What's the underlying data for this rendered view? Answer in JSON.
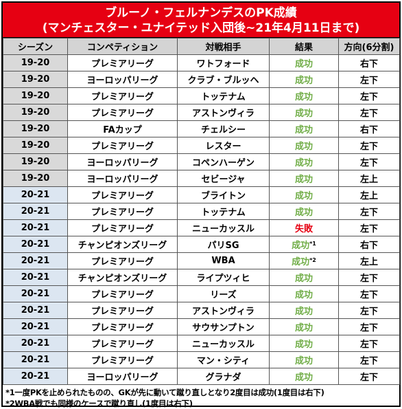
{
  "title": {
    "line1": "ブルーノ・フェルナンデスのPK成績",
    "line2": "(マンチェスター・ユナイテッド入団後~21年4月11日まで)"
  },
  "headers": [
    "シーズン",
    "コンペティション",
    "対戦相手",
    "結果",
    "方向(6分割)"
  ],
  "rows": [
    {
      "season": "19-20",
      "competition": "プレミアリーグ",
      "opponent": "ワトフォード",
      "result": "成功",
      "status": "win",
      "direction": "右下"
    },
    {
      "season": "19-20",
      "competition": "ヨーロッパリーグ",
      "opponent": "クラブ・ブルッヘ",
      "result": "成功",
      "status": "win",
      "direction": "左下"
    },
    {
      "season": "19-20",
      "competition": "プレミアリーグ",
      "opponent": "トッテナム",
      "result": "成功",
      "status": "win",
      "direction": "左下"
    },
    {
      "season": "19-20",
      "competition": "プレミアリーグ",
      "opponent": "アストンヴィラ",
      "result": "成功",
      "status": "win",
      "direction": "左下"
    },
    {
      "season": "19-20",
      "competition": "FAカップ",
      "opponent": "チェルシー",
      "result": "成功",
      "status": "win",
      "direction": "右下"
    },
    {
      "season": "19-20",
      "competition": "プレミアリーグ",
      "opponent": "レスター",
      "result": "成功",
      "status": "win",
      "direction": "左下"
    },
    {
      "season": "19-20",
      "competition": "ヨーロッパリーグ",
      "opponent": "コペンハーゲン",
      "result": "成功",
      "status": "win",
      "direction": "左下"
    },
    {
      "season": "19-20",
      "competition": "ヨーロッパリーグ",
      "opponent": "セビージャ",
      "result": "成功",
      "status": "win",
      "direction": "左上"
    },
    {
      "season": "20-21",
      "competition": "プレミアリーグ",
      "opponent": "ブライトン",
      "result": "成功",
      "status": "win",
      "direction": "左上"
    },
    {
      "season": "20-21",
      "competition": "プレミアリーグ",
      "opponent": "トッテナム",
      "result": "成功",
      "status": "win",
      "direction": "左下"
    },
    {
      "season": "20-21",
      "competition": "プレミアリーグ",
      "opponent": "ニューカッスル",
      "result": "失敗",
      "status": "loss",
      "direction": "左下"
    },
    {
      "season": "20-21",
      "competition": "チャンピオンズリーグ",
      "opponent": "パリSG",
      "result": "成功",
      "mark": "*1",
      "status": "win",
      "direction": "右下"
    },
    {
      "season": "20-21",
      "competition": "プレミアリーグ",
      "opponent": "WBA",
      "result": "成功",
      "mark": "*2",
      "status": "win",
      "direction": "左上"
    },
    {
      "season": "20-21",
      "competition": "チャンピオンズリーグ",
      "opponent": "ライプツィヒ",
      "result": "成功",
      "status": "win",
      "direction": "左下"
    },
    {
      "season": "20-21",
      "competition": "プレミアリーグ",
      "opponent": "リーズ",
      "result": "成功",
      "status": "win",
      "direction": "左下"
    },
    {
      "season": "20-21",
      "competition": "プレミアリーグ",
      "opponent": "アストンヴィラ",
      "result": "成功",
      "status": "win",
      "direction": "左下"
    },
    {
      "season": "20-21",
      "competition": "プレミアリーグ",
      "opponent": "サウサンプトン",
      "result": "成功",
      "status": "win",
      "direction": "左下"
    },
    {
      "season": "20-21",
      "competition": "プレミアリーグ",
      "opponent": "ニューカッスル",
      "result": "成功",
      "status": "win",
      "direction": "左下"
    },
    {
      "season": "20-21",
      "competition": "プレミアリーグ",
      "opponent": "マン・シティ",
      "result": "成功",
      "status": "win",
      "direction": "左下"
    },
    {
      "season": "20-21",
      "competition": "ヨーロッパリーグ",
      "opponent": "グラナダ",
      "result": "成功",
      "status": "win",
      "direction": "左下"
    }
  ],
  "notes": [
    "*1一度PKを止められたものの、GKが先に動いて蹴り直しとなり2度目は成功(1度目は右下)",
    "*2WBA戦でも同様のケースで蹴り直し(1度目は右下)"
  ],
  "colors": {
    "title_bg": "#e60012",
    "success": "#70ad47",
    "failure": "#e60012",
    "season_1920_bg": "#d9d9d9",
    "season_2021_bg": "#dce6f1"
  }
}
